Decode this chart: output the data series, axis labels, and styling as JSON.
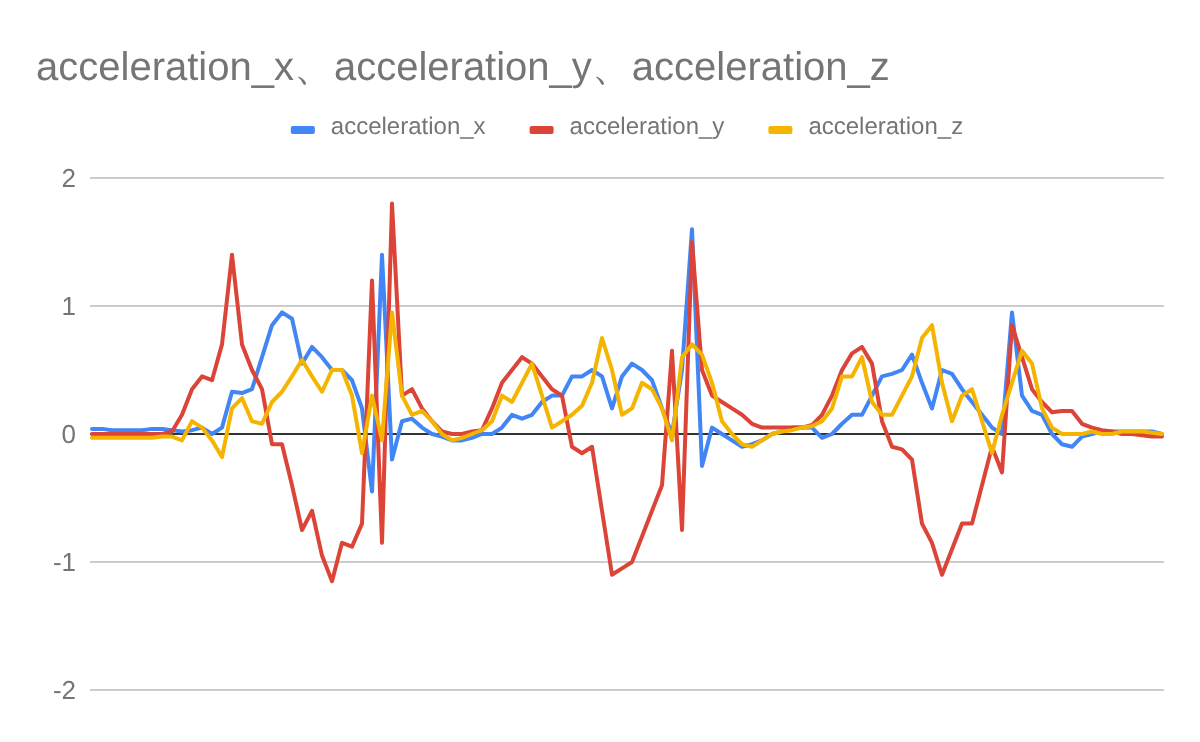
{
  "chart_data": {
    "type": "line",
    "title": "acceleration_x、acceleration_y、acceleration_z",
    "categories": [
      null,
      null,
      null,
      null,
      null,
      null,
      null,
      null,
      null,
      null,
      null,
      null,
      null,
      null,
      null,
      null,
      null,
      null,
      null,
      null,
      null,
      null,
      null,
      null,
      null,
      null,
      null,
      null,
      null,
      null,
      null,
      null,
      null,
      null,
      null,
      null,
      null,
      null,
      null,
      null,
      null,
      null,
      null,
      null,
      null,
      null,
      null,
      null,
      null,
      null,
      null,
      null,
      null,
      null,
      null,
      null,
      null,
      null,
      null,
      null,
      null,
      null,
      null,
      null,
      null,
      null,
      null,
      null,
      null,
      null,
      null,
      null,
      null,
      null,
      null,
      null,
      null,
      null,
      null,
      null,
      null,
      null,
      null,
      null,
      null,
      null,
      null,
      null,
      null,
      null,
      null,
      null,
      null,
      null,
      null,
      null,
      null,
      null,
      null,
      null,
      null,
      null,
      null,
      null,
      null,
      null,
      null,
      null
    ],
    "ylim": [
      -2,
      2
    ],
    "yticks": [
      -2,
      -1,
      0,
      1,
      2
    ],
    "grid": "y",
    "legend": "top",
    "marker": "none",
    "line_style": "solid",
    "series": [
      {
        "name": "acceleration_x",
        "color": "#4285f4",
        "values": [
          0.04,
          0.04,
          0.03,
          0.03,
          0.03,
          0.03,
          0.04,
          0.04,
          0.03,
          0.02,
          0.03,
          0.05,
          0,
          0.05,
          0.33,
          0.32,
          0.35,
          0.6,
          0.85,
          0.95,
          0.9,
          0.55,
          0.68,
          0.6,
          0.5,
          0.5,
          0.42,
          0.2,
          -0.45,
          1.4,
          -0.2,
          0.1,
          0.12,
          0.05,
          0,
          -0.02,
          -0.05,
          -0.05,
          -0.03,
          0,
          0,
          0.05,
          0.15,
          0.12,
          0.15,
          0.25,
          0.3,
          0.3,
          0.45,
          0.45,
          0.5,
          0.45,
          0.2,
          0.45,
          0.55,
          0.5,
          0.42,
          0.2,
          0,
          0.5,
          1.6,
          -0.25,
          0.05,
          0,
          -0.05,
          -0.1,
          -0.08,
          -0.05,
          0,
          0.02,
          0.05,
          0.05,
          0.05,
          -0.03,
          0,
          0.08,
          0.15,
          0.15,
          0.3,
          0.45,
          0.47,
          0.5,
          0.62,
          0.4,
          0.2,
          0.5,
          0.47,
          0.35,
          0.25,
          0.15,
          0.05,
          0,
          0.95,
          0.3,
          0.18,
          0.15,
          0,
          -0.08,
          -0.1,
          -0.02,
          0,
          0.02,
          0.02,
          0.02,
          0.02,
          0.02,
          0.02,
          0
        ]
      },
      {
        "name": "acceleration_y",
        "color": "#db4437",
        "values": [
          0,
          0,
          0,
          0,
          0,
          0,
          0,
          0,
          0.02,
          0.15,
          0.35,
          0.45,
          0.42,
          0.7,
          1.4,
          0.7,
          0.5,
          0.35,
          -0.08,
          -0.08,
          -0.4,
          -0.75,
          -0.6,
          -0.95,
          -1.15,
          -0.85,
          -0.88,
          -0.7,
          1.2,
          -0.85,
          1.8,
          0.3,
          0.35,
          0.2,
          0.1,
          0.02,
          0,
          0,
          0.02,
          0.03,
          0.2,
          0.4,
          0.5,
          0.6,
          0.55,
          0.45,
          0.35,
          0.3,
          -0.1,
          -0.15,
          -0.1,
          -0.6,
          -1.1,
          -1.05,
          -1,
          -0.8,
          -0.6,
          -0.4,
          0.65,
          -0.75,
          1.5,
          0.5,
          0.3,
          0.25,
          0.2,
          0.15,
          0.08,
          0.05,
          0.05,
          0.05,
          0.05,
          0.05,
          0.07,
          0.15,
          0.3,
          0.5,
          0.63,
          0.68,
          0.55,
          0.1,
          -0.1,
          -0.12,
          -0.2,
          -0.7,
          -0.85,
          -1.1,
          -0.9,
          -0.7,
          -0.7,
          -0.4,
          -0.1,
          -0.3,
          0.85,
          0.6,
          0.35,
          0.25,
          0.17,
          0.18,
          0.18,
          0.08,
          0.05,
          0.03,
          0.02,
          0,
          0,
          -0.01,
          -0.02,
          -0.02
        ]
      },
      {
        "name": "acceleration_z",
        "color": "#f4b400",
        "values": [
          -0.03,
          -0.03,
          -0.03,
          -0.03,
          -0.03,
          -0.03,
          -0.03,
          -0.02,
          -0.02,
          -0.05,
          0.1,
          0.05,
          -0.05,
          -0.18,
          0.2,
          0.28,
          0.1,
          0.08,
          0.25,
          0.33,
          0.45,
          0.58,
          0.45,
          0.33,
          0.5,
          0.5,
          0.3,
          -0.15,
          0.3,
          -0.05,
          0.95,
          0.3,
          0.15,
          0.18,
          0.1,
          0,
          -0.05,
          -0.03,
          0,
          0.03,
          0.1,
          0.3,
          0.25,
          0.4,
          0.55,
          0.3,
          0.05,
          0.1,
          0.15,
          0.22,
          0.4,
          0.75,
          0.5,
          0.15,
          0.2,
          0.4,
          0.35,
          0.2,
          -0.05,
          0.6,
          0.7,
          0.62,
          0.4,
          0.1,
          0,
          -0.08,
          -0.1,
          -0.05,
          0,
          0.02,
          0.03,
          0.05,
          0.06,
          0.1,
          0.2,
          0.45,
          0.45,
          0.6,
          0.25,
          0.15,
          0.15,
          0.3,
          0.45,
          0.75,
          0.85,
          0.4,
          0.1,
          0.3,
          0.35,
          0.1,
          -0.15,
          0.15,
          0.4,
          0.65,
          0.55,
          0.2,
          0.05,
          0,
          0,
          0,
          0.02,
          0,
          0,
          0.02,
          0.02,
          0.02,
          0.01,
          0
        ]
      }
    ]
  }
}
